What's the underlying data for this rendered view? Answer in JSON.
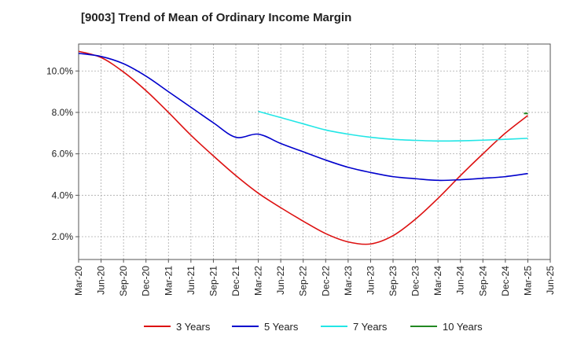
{
  "chart_data": {
    "type": "line",
    "title": "[9003]  Trend of Mean of Ordinary Income Margin",
    "xlabel": "",
    "ylabel": "",
    "x_ticks": [
      "Mar-20",
      "Jun-20",
      "Sep-20",
      "Dec-20",
      "Mar-21",
      "Jun-21",
      "Sep-21",
      "Dec-21",
      "Mar-22",
      "Jun-22",
      "Sep-22",
      "Dec-22",
      "Mar-23",
      "Jun-23",
      "Sep-23",
      "Dec-23",
      "Mar-24",
      "Jun-24",
      "Sep-24",
      "Dec-24",
      "Mar-25",
      "Jun-25"
    ],
    "y_ticks": [
      "2.0%",
      "4.0%",
      "6.0%",
      "8.0%",
      "10.0%"
    ],
    "y_tick_values": [
      2.0,
      4.0,
      6.0,
      8.0,
      10.0
    ],
    "ylim": [
      0.9,
      11.3
    ],
    "grid": true,
    "legend_position": "bottom",
    "series": [
      {
        "name": "3 Years",
        "color": "#dd1111",
        "points": [
          [
            "Mar-20",
            10.95
          ],
          [
            "Jun-20",
            10.65
          ],
          [
            "Sep-20",
            9.95
          ],
          [
            "Dec-20",
            9.05
          ],
          [
            "Mar-21",
            8.0
          ],
          [
            "Jun-21",
            6.9
          ],
          [
            "Sep-21",
            5.9
          ],
          [
            "Dec-21",
            4.95
          ],
          [
            "Mar-22",
            4.1
          ],
          [
            "Jun-22",
            3.4
          ],
          [
            "Sep-22",
            2.75
          ],
          [
            "Dec-22",
            2.15
          ],
          [
            "Mar-23",
            1.75
          ],
          [
            "Jun-23",
            1.65
          ],
          [
            "Sep-23",
            2.05
          ],
          [
            "Dec-23",
            2.85
          ],
          [
            "Mar-24",
            3.85
          ],
          [
            "Jun-24",
            4.95
          ],
          [
            "Sep-24",
            6.0
          ],
          [
            "Dec-24",
            7.0
          ],
          [
            "Mar-25",
            7.85
          ]
        ]
      },
      {
        "name": "5 Years",
        "color": "#0000cc",
        "points": [
          [
            "Mar-20",
            10.85
          ],
          [
            "Jun-20",
            10.7
          ],
          [
            "Sep-20",
            10.35
          ],
          [
            "Dec-20",
            9.75
          ],
          [
            "Mar-21",
            9.0
          ],
          [
            "Jun-21",
            8.25
          ],
          [
            "Sep-21",
            7.5
          ],
          [
            "Dec-21",
            6.8
          ],
          [
            "Mar-22",
            6.95
          ],
          [
            "Jun-22",
            6.5
          ],
          [
            "Sep-22",
            6.1
          ],
          [
            "Dec-22",
            5.7
          ],
          [
            "Mar-23",
            5.35
          ],
          [
            "Jun-23",
            5.1
          ],
          [
            "Sep-23",
            4.9
          ],
          [
            "Dec-23",
            4.8
          ],
          [
            "Mar-24",
            4.72
          ],
          [
            "Jun-24",
            4.75
          ],
          [
            "Sep-24",
            4.82
          ],
          [
            "Dec-24",
            4.9
          ],
          [
            "Mar-25",
            5.05
          ]
        ]
      },
      {
        "name": "7 Years",
        "color": "#22e6e6",
        "points": [
          [
            "Mar-22",
            8.05
          ],
          [
            "Jun-22",
            7.75
          ],
          [
            "Sep-22",
            7.45
          ],
          [
            "Dec-22",
            7.15
          ],
          [
            "Mar-23",
            6.95
          ],
          [
            "Jun-23",
            6.8
          ],
          [
            "Sep-23",
            6.7
          ],
          [
            "Dec-23",
            6.65
          ],
          [
            "Mar-24",
            6.62
          ],
          [
            "Jun-24",
            6.63
          ],
          [
            "Sep-24",
            6.66
          ],
          [
            "Dec-24",
            6.7
          ],
          [
            "Mar-25",
            6.75
          ]
        ]
      },
      {
        "name": "10 Years",
        "color": "#228822",
        "points": [
          [
            "Mar-25",
            7.95
          ]
        ]
      }
    ]
  }
}
